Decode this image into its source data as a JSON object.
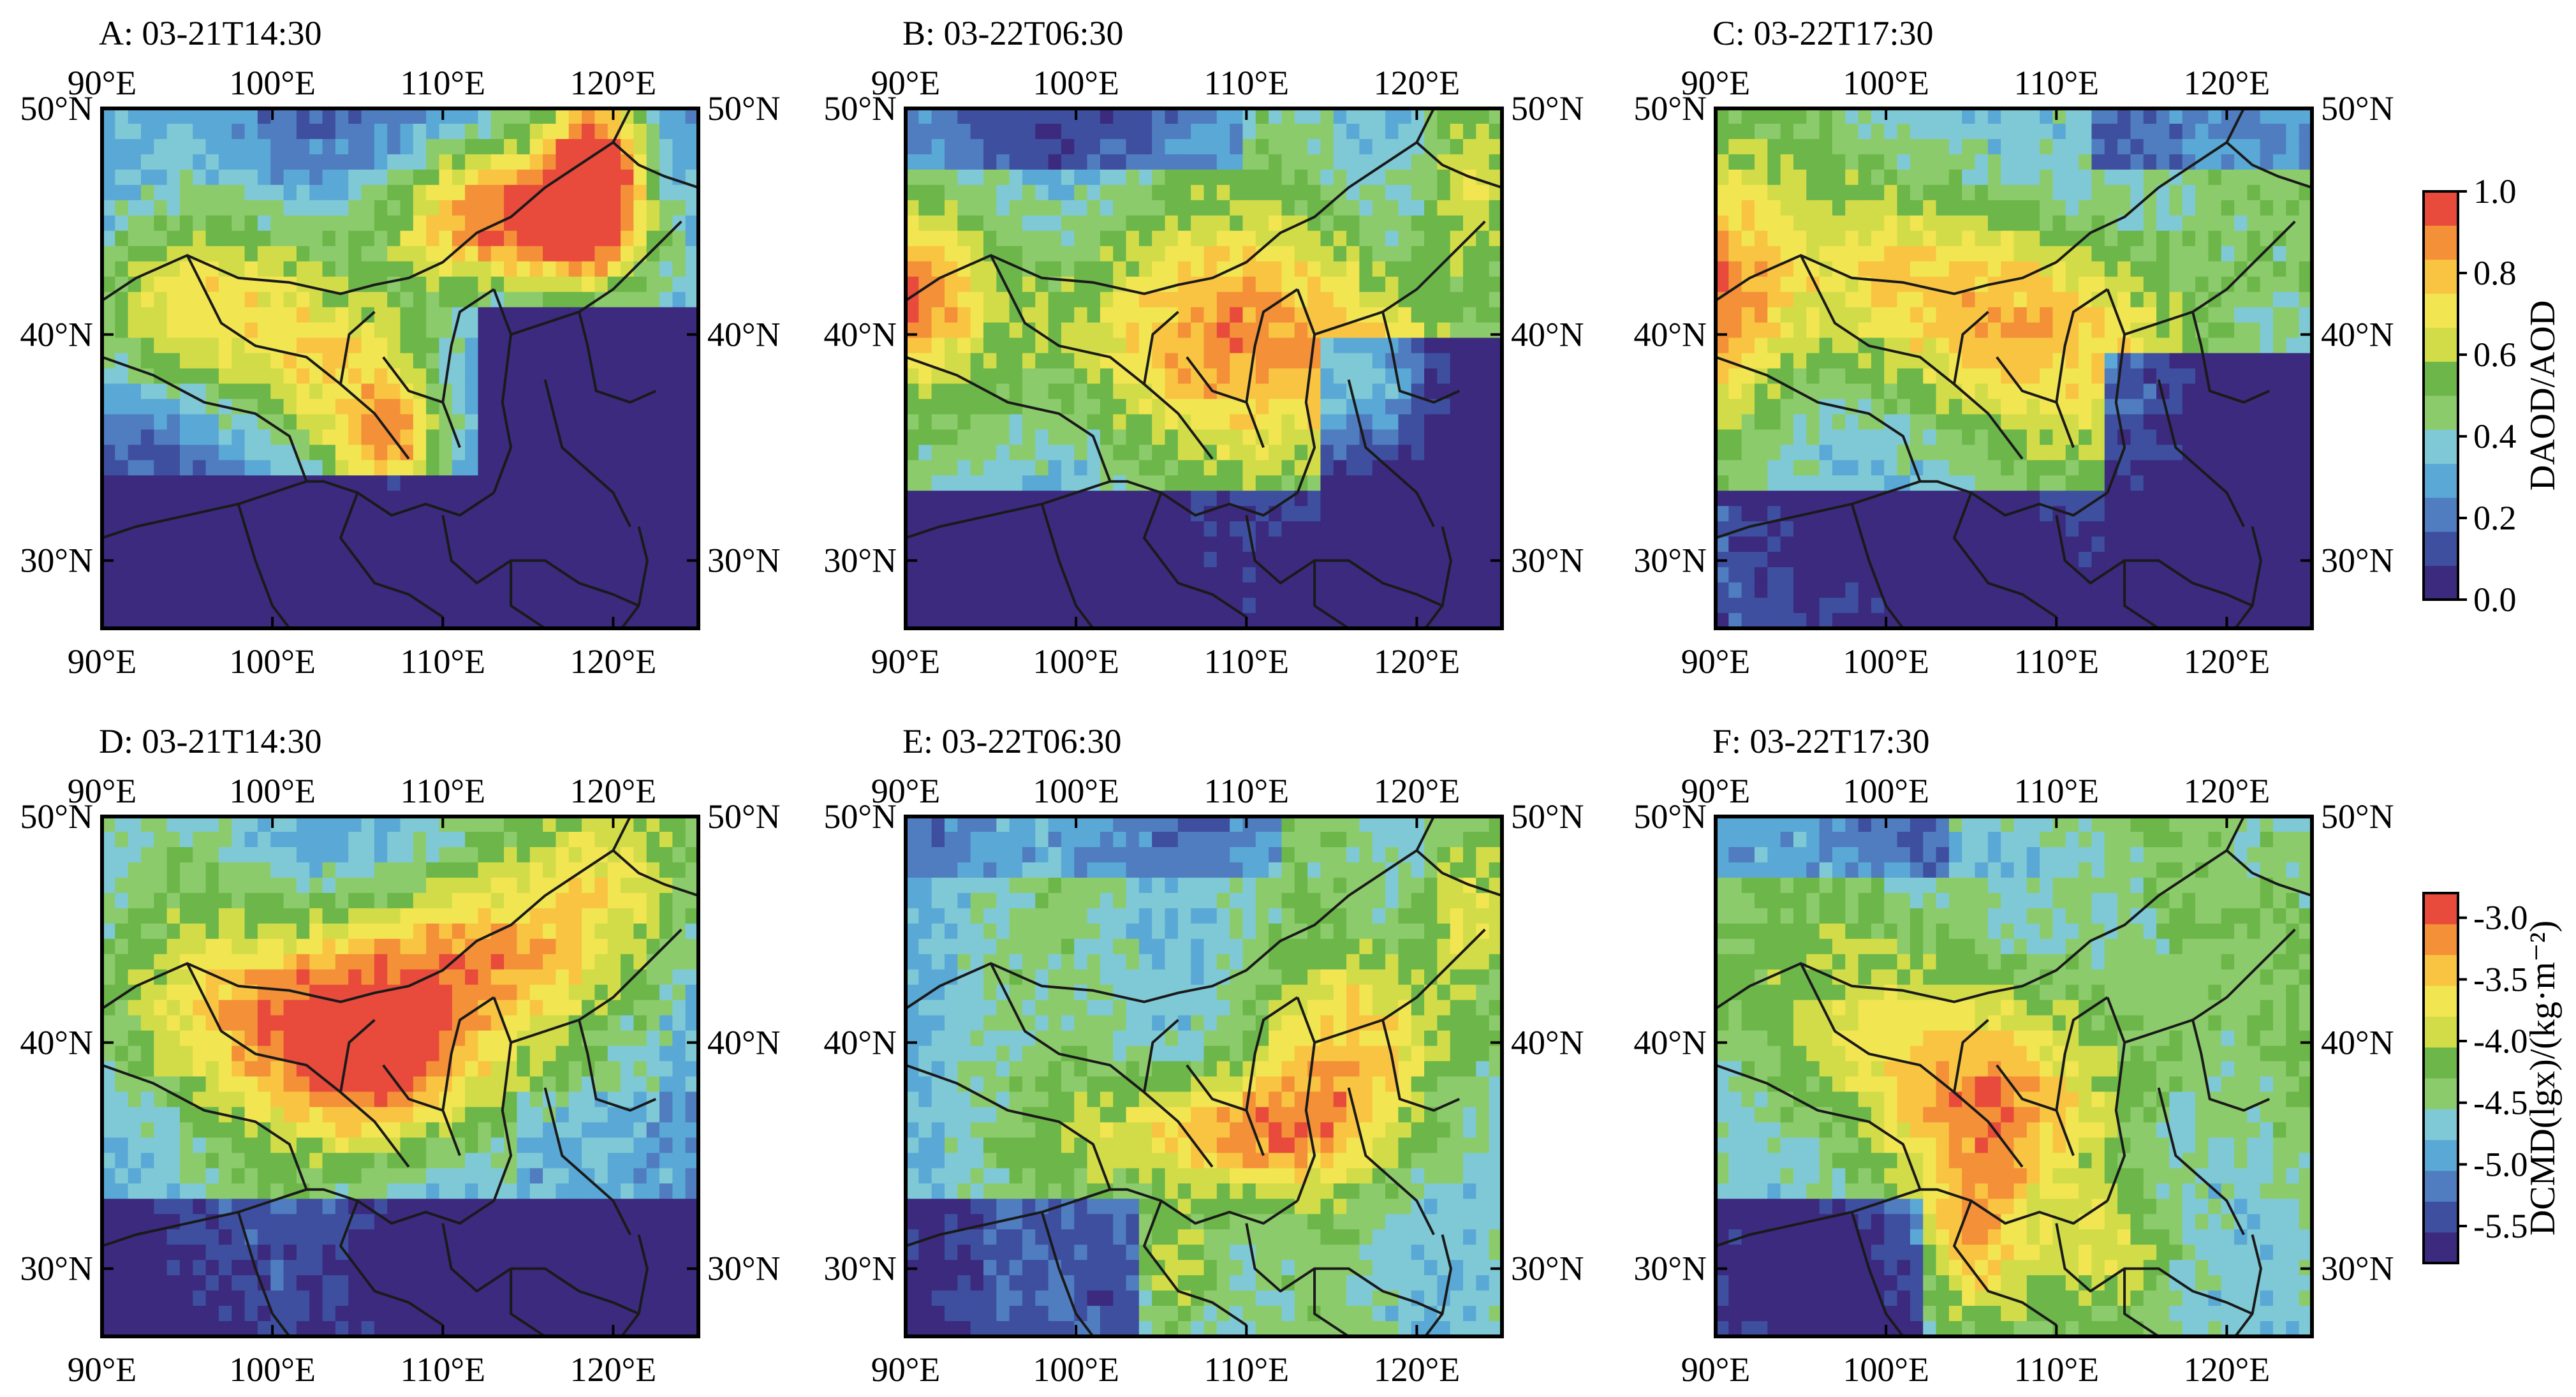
{
  "panels": [
    {
      "id": "A",
      "title": "A: 03-21T14:30",
      "variable": "daod",
      "hotspots": "a"
    },
    {
      "id": "B",
      "title": "B: 03-22T06:30",
      "variable": "daod",
      "hotspots": "b"
    },
    {
      "id": "C",
      "title": "C: 03-22T17:30",
      "variable": "daod",
      "hotspots": "c"
    },
    {
      "id": "D",
      "title": "D: 03-21T14:30",
      "variable": "dcmd",
      "hotspots": "d"
    },
    {
      "id": "E",
      "title": "E: 03-22T06:30",
      "variable": "dcmd",
      "hotspots": "e"
    },
    {
      "id": "F",
      "title": "F: 03-22T17:30",
      "variable": "dcmd",
      "hotspots": "f"
    }
  ],
  "axes": {
    "lon_ticks": [
      90,
      100,
      110,
      120
    ],
    "lon_labels": [
      "90°E",
      "100°E",
      "110°E",
      "120°E"
    ],
    "lat_ticks": [
      30,
      40,
      50
    ],
    "lat_labels": [
      "30°N",
      "40°N",
      "50°N"
    ],
    "lon_range": [
      90,
      125
    ],
    "lat_range": [
      27,
      50
    ]
  },
  "colorbars": [
    {
      "id": "daod",
      "title": "DAOD/AOD",
      "range": [
        0.0,
        1.0
      ],
      "tick_values": [
        0.0,
        0.2,
        0.4,
        0.6,
        0.8,
        1.0
      ],
      "tick_labels": [
        "0.0",
        "0.2",
        "0.4",
        "0.6",
        "0.8",
        "1.0"
      ]
    },
    {
      "id": "dcmd",
      "title": "DCMD(lgx)/(kg·m⁻²)",
      "range": [
        -5.8,
        -2.8
      ],
      "tick_values": [
        -5.5,
        -5.0,
        -4.5,
        -4.0,
        -3.5,
        -3.0
      ],
      "tick_labels": [
        "-5.5",
        "-5.0",
        "-4.5",
        "-4.0",
        "-3.5",
        "-3.0"
      ]
    }
  ],
  "palette": [
    "#3b2a7e",
    "#3e4fa0",
    "#4f7dc0",
    "#5aa8d6",
    "#7fc9d6",
    "#8ccb6b",
    "#6cb64a",
    "#d2dc48",
    "#f2e552",
    "#f9c442",
    "#f39038",
    "#e84a3b"
  ],
  "border_color": "#000000",
  "map_line_color": "#1a1a1a"
}
